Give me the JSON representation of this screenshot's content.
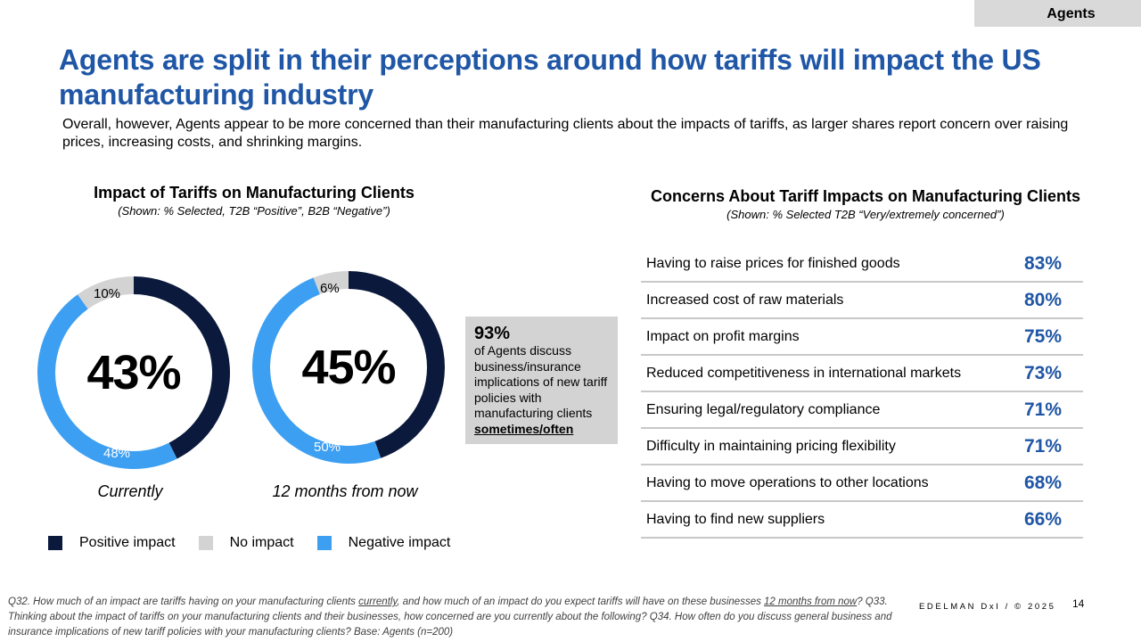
{
  "section_tag": "Agents",
  "title": "Agents are split in their perceptions around how tariffs will impact the US manufacturing industry",
  "subtitle": "Overall, however, Agents appear to be more concerned than their manufacturing clients about the impacts of tariffs, as larger shares report concern over raising prices, increasing costs, and shrinking margins.",
  "left_section": {
    "heading": "Impact of Tariffs on Manufacturing Clients",
    "subheading": "(Shown: % Selected, T2B “Positive”, B2B “Negative”)"
  },
  "right_section": {
    "heading": "Concerns About Tariff Impacts on Manufacturing Clients",
    "subheading": "(Shown: % Selected T2B “Very/extremely concerned”)"
  },
  "colors": {
    "positive": "#0b1a3c",
    "none": "#d3d3d3",
    "negative": "#3d9ff2",
    "accent": "#1f56a5"
  },
  "chart_data": [
    {
      "type": "pie",
      "variant": "donut",
      "title": "Currently",
      "center_label": "43%",
      "series": [
        {
          "name": "Positive impact",
          "value": 43,
          "label": "43%"
        },
        {
          "name": "Negative impact",
          "value": 48,
          "label": "48%"
        },
        {
          "name": "No impact",
          "value": 10,
          "label": "10%"
        }
      ]
    },
    {
      "type": "pie",
      "variant": "donut",
      "title": "12 months from now",
      "center_label": "45%",
      "series": [
        {
          "name": "Positive impact",
          "value": 45,
          "label": "45%"
        },
        {
          "name": "Negative impact",
          "value": 50,
          "label": "50%"
        },
        {
          "name": "No impact",
          "value": 6,
          "label": "6%"
        }
      ]
    }
  ],
  "legend": [
    {
      "label": "Positive impact",
      "color": "#0b1a3c"
    },
    {
      "label": "No impact",
      "color": "#d3d3d3"
    },
    {
      "label": "Negative impact",
      "color": "#3d9ff2"
    }
  ],
  "callout": {
    "value": "93%",
    "text": "of Agents discuss business/insurance implications of new tariff policies with manufacturing clients",
    "emphasis": "sometimes/often"
  },
  "concerns": [
    {
      "label": "Having to raise prices for finished goods",
      "value": "83%"
    },
    {
      "label": "Increased cost of raw materials",
      "value": "80%"
    },
    {
      "label": "Impact on profit margins",
      "value": "75%"
    },
    {
      "label": "Reduced competitiveness in international markets",
      "value": "73%"
    },
    {
      "label": "Ensuring legal/regulatory compliance",
      "value": "71%"
    },
    {
      "label": "Difficulty in maintaining pricing flexibility",
      "value": "71%"
    },
    {
      "label": "Having to move operations to other locations",
      "value": "68%"
    },
    {
      "label": "Having to find new suppliers",
      "value": "66%"
    }
  ],
  "footnote": {
    "p1": "Q32. How much of an impact are tariffs having on your manufacturing clients ",
    "u1": "currently",
    "p2": ", and how much of an impact do you expect tariffs will have on these businesses ",
    "u2": "12 months from now",
    "p3": "? Q33. Thinking about the impact of tariffs on your manufacturing clients and their businesses, how concerned are you currently about the following? Q34. How often do you discuss general business and insurance implications of new tariff policies with your manufacturing clients? Base: Agents (n=200)"
  },
  "brand": "EDELMAN DxI / © 2025",
  "page_number": "14"
}
